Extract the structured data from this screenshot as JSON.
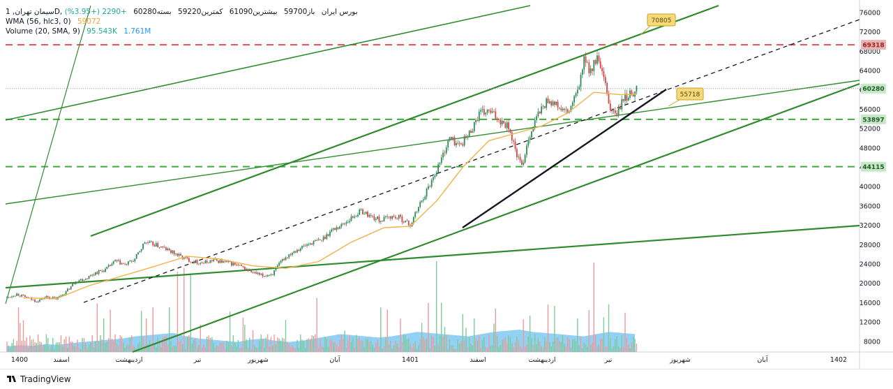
{
  "header": {
    "symbol": "سیمان تهران, 1D, بورس ایران",
    "open": "باز59700",
    "high": "بیشترین61090",
    "low": "کمترین59220",
    "close": "بسته60280",
    "change": "+2290 (+3.95%)",
    "wma_label": "WMA (56, hlc3, 0)",
    "wma_value": "59072",
    "volume_label": "Volume (20, SMA, 9)",
    "volume_value": "95.543K",
    "volume_sma": "1.761M"
  },
  "footer": {
    "brand": "TradingView"
  },
  "colors": {
    "trend_green": "#2e8b2e",
    "dashed_red": "#e05050",
    "dashed_green": "#3daa3d",
    "wma": "#f2b24a",
    "candle_up": "#2e8b57",
    "candle_down": "#d64545",
    "volume_area": "#6ec1f0",
    "callout": "#f5d97a"
  },
  "chart_data": {
    "type": "candlestick",
    "y_axis": {
      "ticks": [
        76000,
        72000,
        68000,
        64000,
        60000,
        56000,
        52000,
        48000,
        44000,
        40000,
        36000,
        32000,
        28000,
        24000,
        20000,
        16000,
        12000,
        8000
      ],
      "scale": "linear",
      "position": "right"
    },
    "x_axis": {
      "labels": [
        "1400",
        "اسفند",
        "اردیبهشت",
        "تیر",
        "شهریور",
        "آبان",
        "1401",
        "اسفند",
        "اردیبهشت",
        "تیر",
        "شهریور",
        "آبان",
        "1402"
      ]
    },
    "horizontal_levels": [
      {
        "value": 69318,
        "style": "dashed",
        "color": "#e05050",
        "label": "69318"
      },
      {
        "value": 53897,
        "style": "dashed",
        "color": "#3daa3d",
        "label": "53897"
      },
      {
        "value": 44115,
        "style": "dashed",
        "color": "#3daa3d",
        "label": "44115"
      }
    ],
    "last_price": {
      "value": 60280,
      "label": "60280"
    },
    "callouts": [
      {
        "text": "70805"
      },
      {
        "text": "55718"
      }
    ],
    "price_path": [
      [
        0,
        17000
      ],
      [
        6,
        17800
      ],
      [
        12,
        17000
      ],
      [
        18,
        16300
      ],
      [
        24,
        17200
      ],
      [
        30,
        16800
      ],
      [
        36,
        18200
      ],
      [
        42,
        20500
      ],
      [
        48,
        21000
      ],
      [
        54,
        22200
      ],
      [
        60,
        22800
      ],
      [
        66,
        24600
      ],
      [
        72,
        23800
      ],
      [
        78,
        25000
      ],
      [
        84,
        28500
      ],
      [
        90,
        28000
      ],
      [
        96,
        27200
      ],
      [
        102,
        26200
      ],
      [
        108,
        25200
      ],
      [
        114,
        24500
      ],
      [
        120,
        24200
      ],
      [
        126,
        24800
      ],
      [
        132,
        24400
      ],
      [
        138,
        24000
      ],
      [
        144,
        23200
      ],
      [
        150,
        22200
      ],
      [
        156,
        21500
      ],
      [
        162,
        22000
      ],
      [
        168,
        24800
      ],
      [
        174,
        26500
      ],
      [
        180,
        27500
      ],
      [
        186,
        28400
      ],
      [
        192,
        29000
      ],
      [
        198,
        31000
      ],
      [
        204,
        32000
      ],
      [
        210,
        33500
      ],
      [
        216,
        35000
      ],
      [
        222,
        33800
      ],
      [
        228,
        33000
      ],
      [
        234,
        33800
      ],
      [
        240,
        33500
      ],
      [
        246,
        32000
      ],
      [
        252,
        36500
      ],
      [
        258,
        40500
      ],
      [
        264,
        45000
      ],
      [
        270,
        50000
      ],
      [
        276,
        48500
      ],
      [
        282,
        51000
      ],
      [
        288,
        55000
      ],
      [
        294,
        55500
      ],
      [
        300,
        54000
      ],
      [
        306,
        52500
      ],
      [
        310,
        47500
      ],
      [
        314,
        44000
      ],
      [
        318,
        50000
      ],
      [
        324,
        55000
      ],
      [
        330,
        58000
      ],
      [
        336,
        56500
      ],
      [
        342,
        55000
      ],
      [
        348,
        59500
      ],
      [
        352,
        66000
      ],
      [
        356,
        64000
      ],
      [
        360,
        66500
      ],
      [
        364,
        62000
      ],
      [
        368,
        56000
      ],
      [
        372,
        55000
      ],
      [
        376,
        58000
      ],
      [
        380,
        59000
      ],
      [
        384,
        60280
      ]
    ],
    "wma_path": [
      [
        10,
        17000
      ],
      [
        30,
        16800
      ],
      [
        50,
        19500
      ],
      [
        70,
        21500
      ],
      [
        90,
        23500
      ],
      [
        110,
        25600
      ],
      [
        130,
        25000
      ],
      [
        150,
        23600
      ],
      [
        170,
        23100
      ],
      [
        190,
        24500
      ],
      [
        210,
        28500
      ],
      [
        230,
        31500
      ],
      [
        246,
        31800
      ],
      [
        262,
        37000
      ],
      [
        278,
        44000
      ],
      [
        294,
        49500
      ],
      [
        310,
        51000
      ],
      [
        326,
        52500
      ],
      [
        342,
        55200
      ],
      [
        358,
        59500
      ],
      [
        374,
        59000
      ],
      [
        384,
        59072
      ]
    ],
    "volume_profile": [
      0.25,
      0.3,
      0.28,
      0.35,
      0.32,
      0.4,
      0.45,
      0.5,
      0.55,
      0.6,
      0.7,
      0.75,
      0.8,
      0.85,
      0.7,
      0.6,
      0.55,
      0.5,
      0.45,
      0.55,
      0.6,
      0.5,
      0.45,
      0.5,
      0.6,
      0.7,
      0.8,
      0.75,
      0.7,
      0.65,
      0.7,
      0.8,
      0.9,
      0.85,
      0.8,
      0.75,
      0.7,
      0.8,
      0.9,
      0.95,
      1.0,
      0.9,
      0.85,
      0.8,
      0.75,
      0.7,
      0.8,
      0.9,
      0.85,
      0.8
    ]
  }
}
